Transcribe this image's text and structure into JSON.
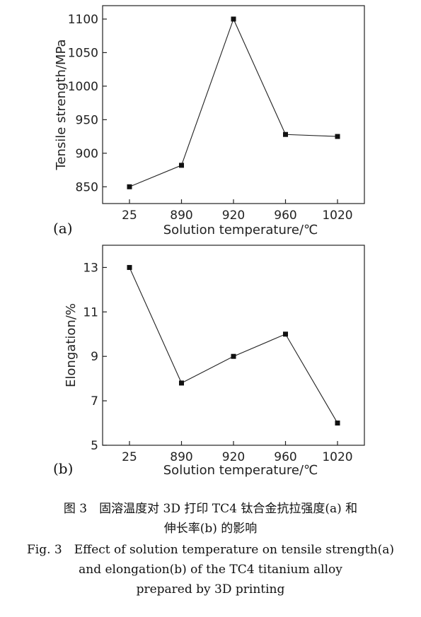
{
  "chart_data": [
    {
      "type": "line",
      "panel_label": "(a)",
      "categories": [
        "25",
        "890",
        "920",
        "960",
        "1020"
      ],
      "series": [
        {
          "values": [
            850,
            882,
            1100,
            928,
            925
          ]
        }
      ],
      "xlabel": "Solution temperature/℃",
      "ylabel": "Tensile strength/MPa",
      "ylim": [
        825,
        1120
      ],
      "yticks": [
        850,
        900,
        950,
        1000,
        1050,
        1100
      ],
      "marker": "square",
      "grid": false
    },
    {
      "type": "line",
      "panel_label": "(b)",
      "categories": [
        "25",
        "890",
        "920",
        "960",
        "1020"
      ],
      "series": [
        {
          "values": [
            13,
            7.8,
            9,
            10,
            6
          ]
        }
      ],
      "xlabel": "Solution temperature/℃",
      "ylabel": "Elongation/%",
      "ylim": [
        5,
        14
      ],
      "yticks": [
        5,
        7,
        9,
        11,
        13
      ],
      "marker": "square",
      "grid": false
    }
  ],
  "caption": {
    "cn_line1": "图 3　固溶温度对 3D 打印 TC4 钛合金抗拉强度(a) 和",
    "cn_line2": "伸长率(b) 的影响",
    "en_line1": "Fig. 3　Effect of solution temperature on tensile strength(a)",
    "en_line2": "and elongation(b) of the TC4 titanium alloy",
    "en_line3": "prepared by 3D printing"
  }
}
